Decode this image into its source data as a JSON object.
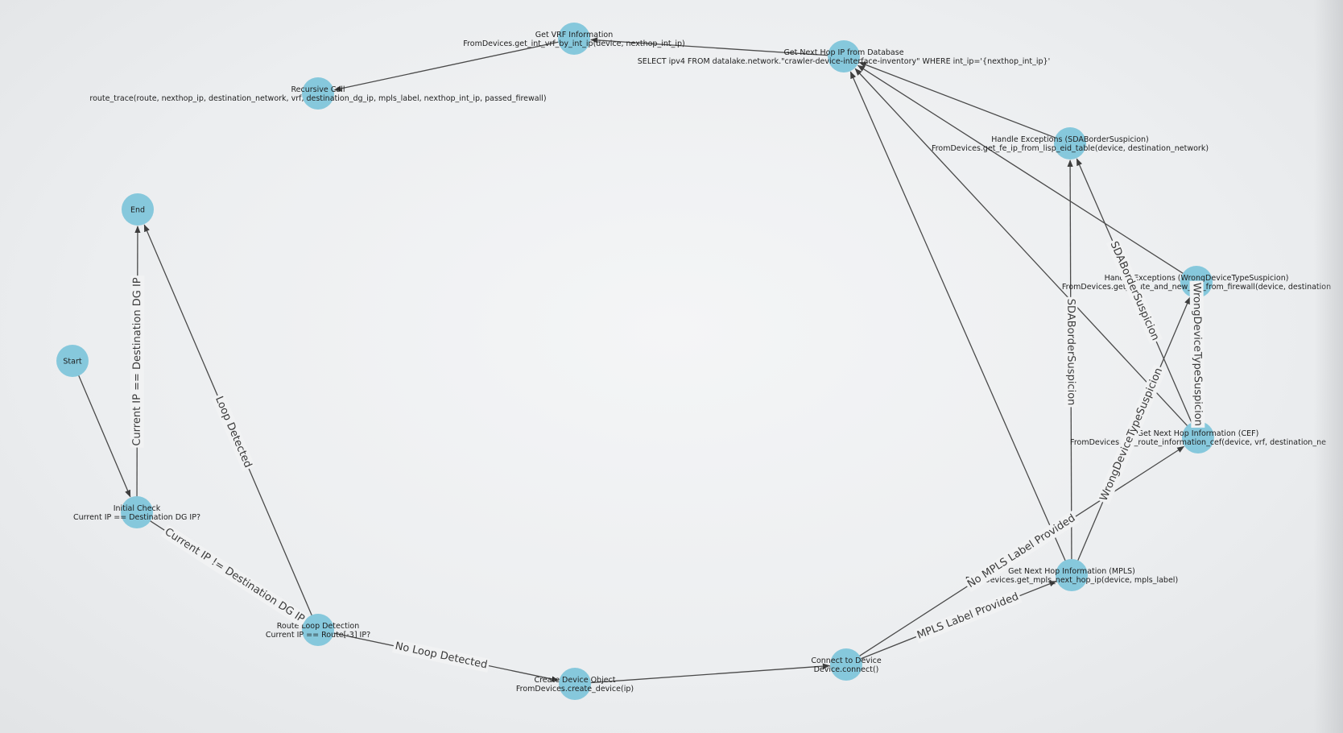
{
  "nodes": [
    {
      "id": "start",
      "lines": [
        "Start"
      ]
    },
    {
      "id": "initial_check",
      "lines": [
        "Initial Check",
        "Current IP == Destination DG IP?"
      ]
    },
    {
      "id": "end",
      "lines": [
        "End"
      ]
    },
    {
      "id": "route_loop",
      "lines": [
        "Route Loop Detection",
        "Current IP == Route[-3] IP?"
      ]
    },
    {
      "id": "create_device",
      "lines": [
        "Create Device Object",
        "FromDevices.create_device(ip)"
      ]
    },
    {
      "id": "connect",
      "lines": [
        "Connect to Device",
        "Device.connect()"
      ]
    },
    {
      "id": "mpls",
      "lines": [
        "Get Next Hop Information (MPLS)",
        "FromDevices.get_mpls_next_hop_ip(device, mpls_label)"
      ]
    },
    {
      "id": "cef",
      "lines": [
        "Get Next Hop Information (CEF)",
        "FromDevices.get_route_information_cef(device, vrf, destination_ne"
      ]
    },
    {
      "id": "wrong_dev",
      "lines": [
        "Handle Exceptions (WrongDeviceTypeSuspicion)",
        "FromDevices.get_route_and_new_vrf_from_firewall(device, destination"
      ]
    },
    {
      "id": "sda",
      "lines": [
        "Handle Exceptions (SDABorderSuspicion)",
        "FromDevices.get_fe_ip_from_lisp_eid_table(device, destination_network)"
      ]
    },
    {
      "id": "next_hop_db",
      "lines": [
        "Get Next Hop IP from Database",
        "SELECT ipv4 FROM datalake.network.\"crawler-device-interface-inventory\" WHERE int_ip='{nexthop_int_ip}'"
      ]
    },
    {
      "id": "vrf_info",
      "lines": [
        "Get VRF Information",
        "FromDevices.get_int_vrf_by_int_ip(device, nexthop_int_ip)"
      ]
    },
    {
      "id": "recursive",
      "lines": [
        "Recursive Call",
        "route_trace(route, nexthop_ip, destination_network, vrf, destination_dg_ip, mpls_label, nexthop_int_ip, passed_firewall)"
      ]
    }
  ],
  "edges": [
    {
      "from": "start",
      "to": "initial_check",
      "label": ""
    },
    {
      "from": "initial_check",
      "to": "end",
      "label": "Current IP == Destination DG IP"
    },
    {
      "from": "initial_check",
      "to": "route_loop",
      "label": "Current IP != Destination DG IP"
    },
    {
      "from": "route_loop",
      "to": "end",
      "label": "Loop Detected"
    },
    {
      "from": "route_loop",
      "to": "create_device",
      "label": "No Loop Detected"
    },
    {
      "from": "create_device",
      "to": "connect",
      "label": ""
    },
    {
      "from": "connect",
      "to": "mpls",
      "label": "MPLS Label Provided"
    },
    {
      "from": "connect",
      "to": "cef",
      "label": "No MPLS Label Provided"
    },
    {
      "from": "mpls",
      "to": "next_hop_db",
      "label": ""
    },
    {
      "from": "mpls",
      "to": "sda",
      "label": "SDABorderSuspicion"
    },
    {
      "from": "mpls",
      "to": "wrong_dev",
      "label": "WrongDeviceTypeSuspicion"
    },
    {
      "from": "cef",
      "to": "next_hop_db",
      "label": ""
    },
    {
      "from": "cef",
      "to": "sda",
      "label": "SDABorderSuspicion"
    },
    {
      "from": "cef",
      "to": "wrong_dev",
      "label": "WrongDeviceTypeSuspicion"
    },
    {
      "from": "sda",
      "to": "next_hop_db",
      "label": ""
    },
    {
      "from": "wrong_dev",
      "to": "next_hop_db",
      "label": ""
    },
    {
      "from": "next_hop_db",
      "to": "vrf_info",
      "label": ""
    },
    {
      "from": "vrf_info",
      "to": "recursive",
      "label": ""
    }
  ],
  "colors": {
    "node_fill": "#86c8dc",
    "edge": "#4a4a4a",
    "text": "#1e1e1e"
  }
}
